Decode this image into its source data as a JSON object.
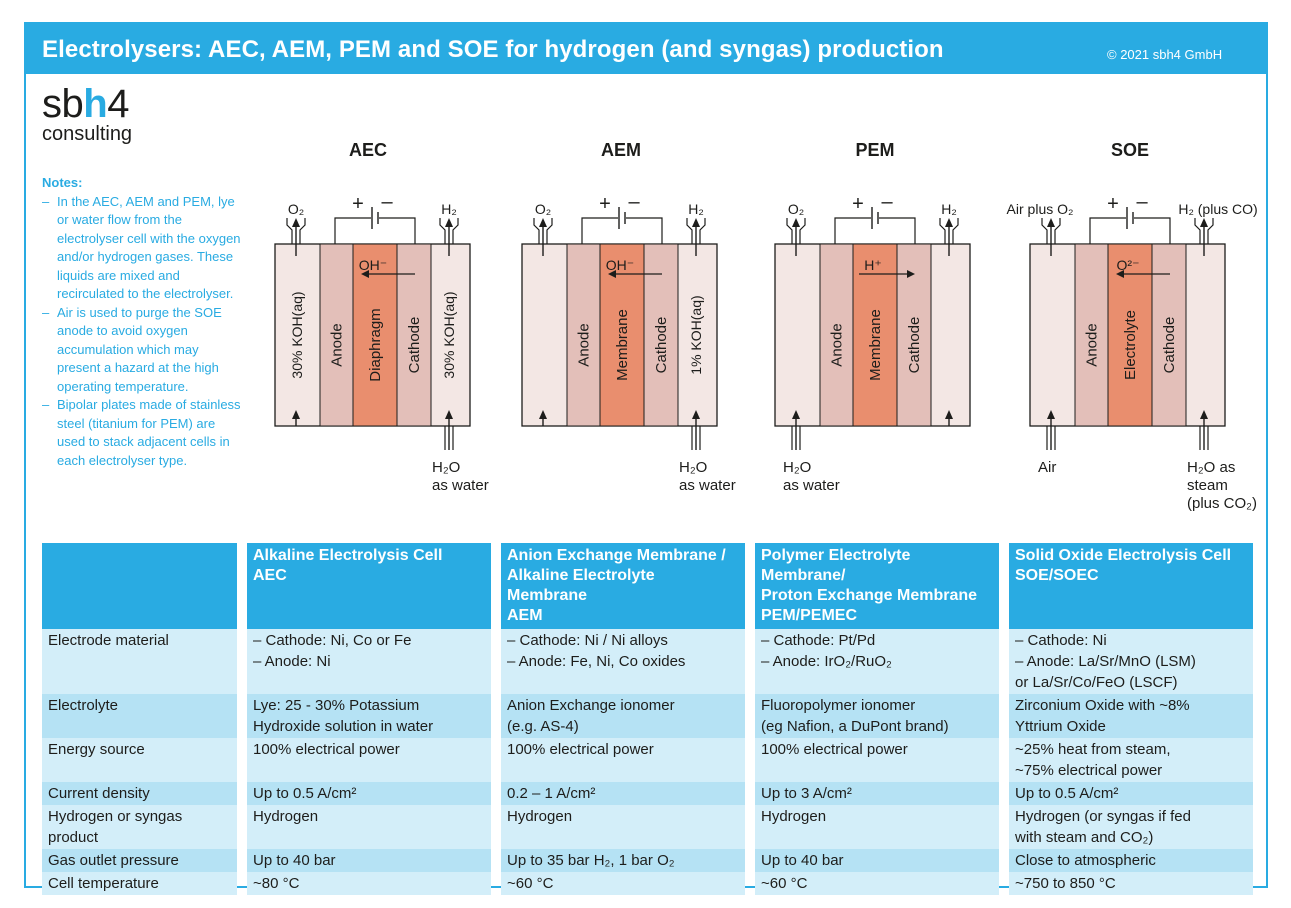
{
  "header": {
    "title": "Electrolysers: AEC, AEM, PEM and SOE for hydrogen (and syngas) production",
    "copyright": "© 2021 sbh4 GmbH"
  },
  "logo": {
    "text": "sbh4",
    "subtitle": "consulting"
  },
  "notes": {
    "heading": "Notes:",
    "items": [
      "In the AEC, AEM and PEM, lye or water flow from the electrolyser cell with the oxygen and/or hydrogen gases. These liquids are mixed and recirculated to the electrolyser.",
      "Air is used to purge the SOE anode to avoid oxygen accumulation which may present a hazard at the high operating temperature.",
      "Bipolar plates made of stainless steel (titanium for PEM) are used to stack adjacent cells in each electrolyser type."
    ]
  },
  "cells": [
    {
      "name": "AEC",
      "top_left": "O₂",
      "top_right": "H₂",
      "bottom_left": "",
      "bottom_right": [
        "H₂O",
        "as water"
      ],
      "left_channel": "30% KOH(aq)",
      "right_channel": "30% KOH(aq)",
      "layers": [
        "Anode",
        "Diaphragm",
        "Cathode"
      ],
      "ion": "OH⁻",
      "ion_direction": "left"
    },
    {
      "name": "AEM",
      "top_left": "O₂",
      "top_right": "H₂",
      "bottom_left": "",
      "bottom_right": [
        "H₂O",
        "as water"
      ],
      "left_channel": "",
      "right_channel": "1% KOH(aq)",
      "layers": [
        "Anode",
        "Membrane",
        "Cathode"
      ],
      "ion": "OH⁻",
      "ion_direction": "left"
    },
    {
      "name": "PEM",
      "top_left": "O₂",
      "top_right": "H₂",
      "bottom_left": [
        "H₂O",
        "as water"
      ],
      "bottom_right": "",
      "left_channel": "",
      "right_channel": "",
      "layers": [
        "Anode",
        "Membrane",
        "Cathode"
      ],
      "ion": "H⁺",
      "ion_direction": "right"
    },
    {
      "name": "SOE",
      "top_left": "Air plus O₂",
      "top_right": "H₂ (plus CO)",
      "bottom_left": [
        "Air"
      ],
      "bottom_right": [
        "H₂O as",
        "steam",
        "(plus CO₂)"
      ],
      "left_channel": "",
      "right_channel": "",
      "layers": [
        "Anode",
        "Electrolyte",
        "Cathode"
      ],
      "ion": "O²⁻",
      "ion_direction": "left"
    }
  ],
  "power": {
    "plus": "+",
    "minus": "–"
  },
  "colors": {
    "accent": "#29abe2",
    "anode": "#e3bfb9",
    "core": "#e98e6e",
    "channel": "#f3e7e4",
    "row_light": "#d3eef9",
    "row_dark": "#b5e2f4"
  },
  "table": {
    "headers": [
      "",
      "Alkaline Electrolysis Cell\nAEC",
      "Anion Exchange Membrane /\nAlkaline Electrolyte Membrane\nAEM",
      "Polymer Electrolyte Membrane/\nProton Exchange Membrane\nPEM/PEMEC",
      "Solid Oxide Electrolysis Cell\nSOE/SOEC"
    ],
    "rows": [
      [
        "Electrode material",
        "– Cathode: Ni, Co or Fe\n– Anode: Ni",
        "– Cathode: Ni / Ni alloys\n– Anode: Fe, Ni, Co oxides",
        "– Cathode: Pt/Pd\n– Anode: IrO₂/RuO₂",
        "– Cathode: Ni\n– Anode: La/Sr/MnO (LSM)\n   or La/Sr/Co/FeO (LSCF)"
      ],
      [
        "Electrolyte",
        "Lye: 25 - 30% Potassium\nHydroxide solution in water",
        "Anion Exchange ionomer\n(e.g. AS-4)",
        "Fluoropolymer ionomer\n(eg Nafion, a DuPont brand)",
        "Zirconium Oxide with ~8%\nYttrium Oxide"
      ],
      [
        "Energy source",
        "100% electrical power",
        "100% electrical power",
        "100% electrical power",
        "~25% heat from steam,\n~75% electrical power"
      ],
      [
        "Current density",
        "Up to 0.5 A/cm²",
        "0.2 – 1 A/cm²",
        "Up to 3 A/cm²",
        "Up to 0.5 A/cm²"
      ],
      [
        "Hydrogen or syngas\nproduct",
        "Hydrogen",
        "Hydrogen",
        "Hydrogen",
        "Hydrogen (or syngas if fed\nwith steam and CO₂)"
      ],
      [
        "Gas outlet pressure",
        "Up to 40 bar",
        "Up to 35 bar H₂, 1 bar O₂",
        "Up to 40 bar",
        "Close to atmospheric"
      ],
      [
        "Cell temperature",
        "~80 °C",
        "~60 °C",
        "~60 °C",
        "~750 to 850 °C"
      ]
    ]
  }
}
